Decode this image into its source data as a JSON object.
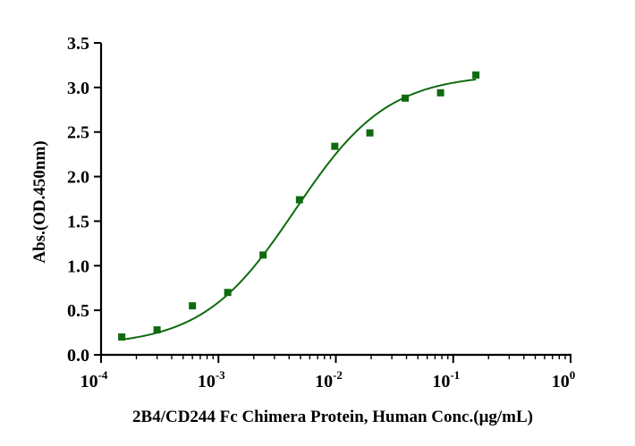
{
  "chart_data": {
    "type": "scatter",
    "title": "",
    "xlabel": "2B4/CD244 Fc Chimera Protein, Human  Conc.(μg/mL)",
    "ylabel": "Abs.(OD.450nm)",
    "x_scale": "log",
    "xlim": [
      0.0001,
      1
    ],
    "ylim": [
      0,
      3.5
    ],
    "x_ticks": [
      {
        "value": 0.0001,
        "base": "10",
        "exp": "-4"
      },
      {
        "value": 0.001,
        "base": "10",
        "exp": "-3"
      },
      {
        "value": 0.01,
        "base": "10",
        "exp": "-2"
      },
      {
        "value": 0.1,
        "base": "10",
        "exp": "-1"
      },
      {
        "value": 1,
        "base": "10",
        "exp": "0"
      }
    ],
    "y_ticks": [
      {
        "value": 0,
        "label": "0.0"
      },
      {
        "value": 0.5,
        "label": "0.5"
      },
      {
        "value": 1.0,
        "label": "1.0"
      },
      {
        "value": 1.5,
        "label": "1.5"
      },
      {
        "value": 2.0,
        "label": "2.0"
      },
      {
        "value": 2.5,
        "label": "2.5"
      },
      {
        "value": 3.0,
        "label": "3.0"
      },
      {
        "value": 3.5,
        "label": "3.5"
      }
    ],
    "grid": false,
    "series": [
      {
        "marker": "square",
        "color": "#0e6b0e",
        "x": [
          0.00015,
          0.0003,
          0.0006,
          0.0012,
          0.0024,
          0.0049,
          0.0098,
          0.0195,
          0.039,
          0.078,
          0.156
        ],
        "y": [
          0.2,
          0.28,
          0.55,
          0.7,
          1.12,
          1.74,
          2.34,
          2.49,
          2.88,
          2.94,
          3.14
        ]
      }
    ],
    "fit_curve": {
      "model": "4PL",
      "color": "#0e6b0e",
      "bottom": 0.1,
      "top": 3.15,
      "ec50": 0.0045,
      "hill": 1.1,
      "x_range": [
        0.00015,
        0.156
      ]
    }
  }
}
